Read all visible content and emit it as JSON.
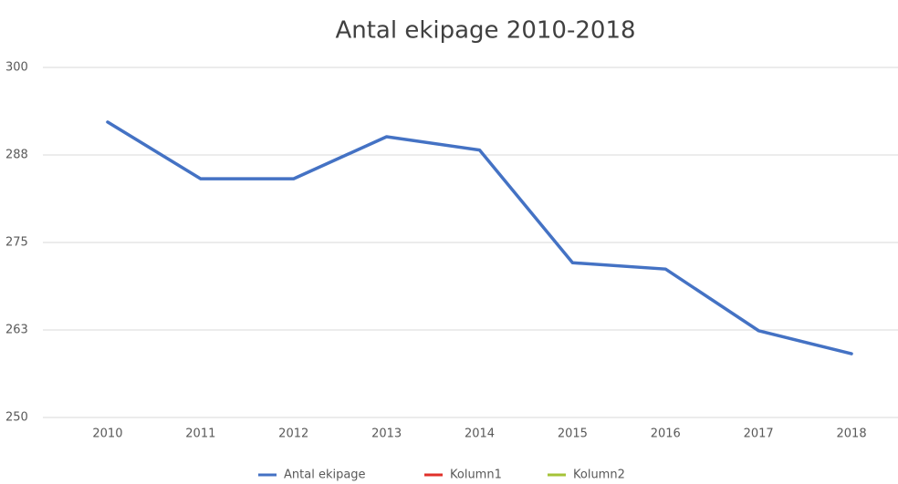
{
  "chart_data": {
    "type": "line",
    "title": "Antal ekipage 2010-2018",
    "categories": [
      "2010",
      "2011",
      "2012",
      "2013",
      "2014",
      "2015",
      "2016",
      "2017",
      "2018"
    ],
    "series": [
      {
        "name": "Antal ekipage",
        "color": "#4472c4",
        "values": [
          292.2,
          284.1,
          284.1,
          290.1,
          288.2,
          272.1,
          271.2,
          262.4,
          259.1
        ]
      },
      {
        "name": "Kolumn1",
        "color": "#e0302a",
        "values": [
          null,
          null,
          null,
          null,
          null,
          null,
          null,
          null,
          null
        ]
      },
      {
        "name": "Kolumn2",
        "color": "#a5c337",
        "values": [
          null,
          null,
          null,
          null,
          null,
          null,
          null,
          null,
          null
        ]
      }
    ],
    "ylim": [
      250,
      300
    ],
    "yticks": [
      250,
      {
        "value": 262.5,
        "label": "263"
      },
      275,
      {
        "value": 287.5,
        "label": "288"
      },
      300
    ],
    "grid": true,
    "legend": "bottom"
  }
}
